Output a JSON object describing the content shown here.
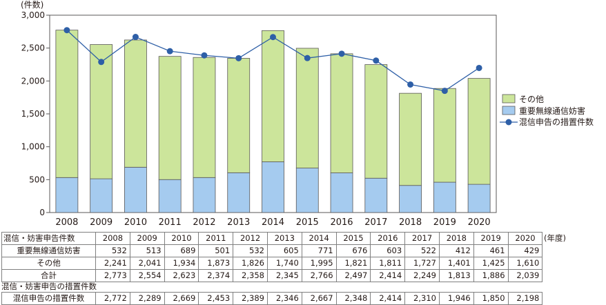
{
  "chart_data": {
    "type": "bar",
    "stacked": true,
    "y_unit": "(件数)",
    "ylim": [
      0,
      3000
    ],
    "yticks": [
      "0",
      "500",
      "1,000",
      "1,500",
      "2,000",
      "2,500",
      "3,000"
    ],
    "categories": [
      "2008",
      "2009",
      "2010",
      "2011",
      "2012",
      "2013",
      "2014",
      "2015",
      "2016",
      "2017",
      "2018",
      "2019",
      "2020"
    ],
    "series": [
      {
        "name": "重要無線通信妨害",
        "kind": "bar",
        "color": "#a5cbef",
        "values": [
          532,
          513,
          689,
          501,
          532,
          605,
          771,
          676,
          603,
          522,
          412,
          461,
          429
        ]
      },
      {
        "name": "その他",
        "kind": "bar",
        "color": "#cce59b",
        "values": [
          2241,
          2041,
          1934,
          1873,
          1826,
          1740,
          1995,
          1821,
          1811,
          1727,
          1401,
          1425,
          1610
        ]
      },
      {
        "name": "混信申告の措置件数",
        "kind": "line",
        "color": "#2e5fa7",
        "values": [
          2772,
          2289,
          2669,
          2453,
          2389,
          2346,
          2667,
          2348,
          2414,
          2310,
          1946,
          1850,
          2198
        ]
      }
    ],
    "legend_position": "right"
  },
  "table": {
    "header_label": "混信・妨害申告件数",
    "unit_note": "(年度)",
    "years": [
      "2008",
      "2009",
      "2010",
      "2011",
      "2012",
      "2013",
      "2014",
      "2015",
      "2016",
      "2017",
      "2018",
      "2019",
      "2020"
    ],
    "rows": [
      {
        "label": "重要無線通信妨害",
        "values": [
          "532",
          "513",
          "689",
          "501",
          "532",
          "605",
          "771",
          "676",
          "603",
          "522",
          "412",
          "461",
          "429"
        ]
      },
      {
        "label": "その他",
        "values": [
          "2,241",
          "2,041",
          "1,934",
          "1,873",
          "1,826",
          "1,740",
          "1,995",
          "1,821",
          "1,811",
          "1,727",
          "1,401",
          "1,425",
          "1,610"
        ]
      },
      {
        "label": "合計",
        "values": [
          "2,773",
          "2,554",
          "2,623",
          "2,374",
          "2,358",
          "2,345",
          "2,766",
          "2,497",
          "2,414",
          "2,249",
          "1,813",
          "1,886",
          "2,039"
        ]
      }
    ],
    "section2_label": "混信・妨害申告の措置件数",
    "row2": {
      "label": "混信申告の措置件数",
      "values": [
        "2,772",
        "2,289",
        "2,669",
        "2,453",
        "2,389",
        "2,346",
        "2,667",
        "2,348",
        "2,414",
        "2,310",
        "1,946",
        "1,850",
        "2,198"
      ]
    }
  },
  "colors": {
    "bar_border": "#595757",
    "axis": "#595757",
    "grid": "#d0d0d0"
  }
}
